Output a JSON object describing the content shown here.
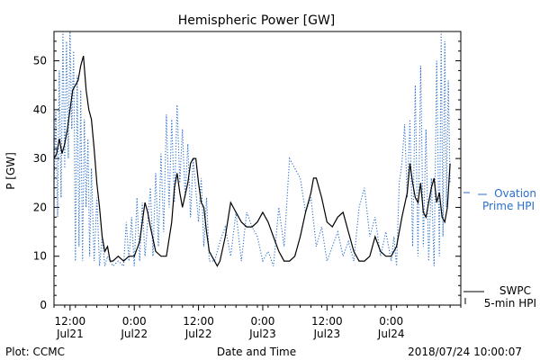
{
  "chart_data": {
    "type": "line",
    "title": "Hemispheric Power [GW]",
    "ylabel": "P [GW]",
    "xlabel": "Date and Time",
    "ylim": [
      0,
      56
    ],
    "xlim": [
      "2018-07-21T09:00",
      "2018-07-24T13:00"
    ],
    "yticks": [
      0,
      10,
      20,
      30,
      40,
      50
    ],
    "xticks": [
      {
        "time": "2018-07-21T12:00",
        "line1": "12:00",
        "line2": "Jul21"
      },
      {
        "time": "2018-07-22T00:00",
        "line1": "0:00",
        "line2": "Jul22"
      },
      {
        "time": "2018-07-22T12:00",
        "line1": "12:00",
        "line2": "Jul22"
      },
      {
        "time": "2018-07-23T00:00",
        "line1": "0:00",
        "line2": "Jul23"
      },
      {
        "time": "2018-07-23T12:00",
        "line1": "12:00",
        "line2": "Jul23"
      },
      {
        "time": "2018-07-24T00:00",
        "line1": "0:00",
        "line2": "Jul24"
      }
    ],
    "series": [
      {
        "name_line1": "SWPC",
        "name_line2": "5-min HPI",
        "color": "#000000",
        "style": "solid",
        "points": [
          [
            "2018-07-21T09:00",
            30
          ],
          [
            "2018-07-21T09:30",
            31
          ],
          [
            "2018-07-21T10:00",
            34
          ],
          [
            "2018-07-21T10:30",
            31
          ],
          [
            "2018-07-21T11:00",
            33
          ],
          [
            "2018-07-21T11:30",
            36
          ],
          [
            "2018-07-21T12:00",
            40
          ],
          [
            "2018-07-21T12:30",
            44
          ],
          [
            "2018-07-21T13:00",
            45
          ],
          [
            "2018-07-21T13:30",
            46
          ],
          [
            "2018-07-21T14:00",
            49
          ],
          [
            "2018-07-21T14:30",
            51
          ],
          [
            "2018-07-21T15:00",
            44
          ],
          [
            "2018-07-21T15:30",
            40
          ],
          [
            "2018-07-21T16:00",
            38
          ],
          [
            "2018-07-21T16:30",
            32
          ],
          [
            "2018-07-21T17:00",
            25
          ],
          [
            "2018-07-21T17:30",
            20
          ],
          [
            "2018-07-21T18:00",
            14
          ],
          [
            "2018-07-21T18:30",
            11
          ],
          [
            "2018-07-21T19:00",
            12
          ],
          [
            "2018-07-21T19:30",
            9
          ],
          [
            "2018-07-21T20:00",
            9
          ],
          [
            "2018-07-21T21:00",
            10
          ],
          [
            "2018-07-21T22:00",
            9
          ],
          [
            "2018-07-21T23:00",
            10
          ],
          [
            "2018-07-22T00:00",
            10
          ],
          [
            "2018-07-22T01:00",
            13
          ],
          [
            "2018-07-22T01:30",
            17
          ],
          [
            "2018-07-22T02:00",
            21
          ],
          [
            "2018-07-22T02:30",
            19
          ],
          [
            "2018-07-22T03:00",
            16
          ],
          [
            "2018-07-22T04:00",
            11
          ],
          [
            "2018-07-22T05:00",
            10
          ],
          [
            "2018-07-22T06:00",
            10
          ],
          [
            "2018-07-22T07:00",
            17
          ],
          [
            "2018-07-22T07:30",
            24
          ],
          [
            "2018-07-22T08:00",
            27
          ],
          [
            "2018-07-22T08:30",
            23
          ],
          [
            "2018-07-22T09:00",
            20
          ],
          [
            "2018-07-22T10:00",
            25
          ],
          [
            "2018-07-22T10:30",
            29
          ],
          [
            "2018-07-22T11:00",
            30
          ],
          [
            "2018-07-22T11:30",
            30
          ],
          [
            "2018-07-22T12:00",
            25
          ],
          [
            "2018-07-22T12:30",
            21
          ],
          [
            "2018-07-22T13:00",
            20
          ],
          [
            "2018-07-22T13:30",
            15
          ],
          [
            "2018-07-22T14:00",
            11
          ],
          [
            "2018-07-22T15:00",
            9
          ],
          [
            "2018-07-22T15:30",
            8
          ],
          [
            "2018-07-22T16:00",
            9
          ],
          [
            "2018-07-22T17:00",
            14
          ],
          [
            "2018-07-22T18:00",
            21
          ],
          [
            "2018-07-22T19:00",
            19
          ],
          [
            "2018-07-22T20:00",
            17
          ],
          [
            "2018-07-22T21:00",
            16
          ],
          [
            "2018-07-22T22:00",
            16
          ],
          [
            "2018-07-22T23:00",
            17
          ],
          [
            "2018-07-23T00:00",
            19
          ],
          [
            "2018-07-23T01:00",
            17
          ],
          [
            "2018-07-23T02:00",
            14
          ],
          [
            "2018-07-23T03:00",
            11
          ],
          [
            "2018-07-23T04:00",
            9
          ],
          [
            "2018-07-23T05:00",
            9
          ],
          [
            "2018-07-23T06:00",
            10
          ],
          [
            "2018-07-23T07:00",
            14
          ],
          [
            "2018-07-23T08:00",
            19
          ],
          [
            "2018-07-23T09:00",
            23
          ],
          [
            "2018-07-23T09:30",
            26
          ],
          [
            "2018-07-23T10:00",
            26
          ],
          [
            "2018-07-23T11:00",
            22
          ],
          [
            "2018-07-23T12:00",
            17
          ],
          [
            "2018-07-23T13:00",
            16
          ],
          [
            "2018-07-23T14:00",
            18
          ],
          [
            "2018-07-23T15:00",
            19
          ],
          [
            "2018-07-23T16:00",
            15
          ],
          [
            "2018-07-23T17:00",
            11
          ],
          [
            "2018-07-23T18:00",
            9
          ],
          [
            "2018-07-23T19:00",
            9
          ],
          [
            "2018-07-23T20:00",
            10
          ],
          [
            "2018-07-23T21:00",
            14
          ],
          [
            "2018-07-23T22:00",
            11
          ],
          [
            "2018-07-23T23:00",
            10
          ],
          [
            "2018-07-24T00:00",
            10
          ],
          [
            "2018-07-24T01:00",
            12
          ],
          [
            "2018-07-24T02:00",
            18
          ],
          [
            "2018-07-24T03:00",
            23
          ],
          [
            "2018-07-24T03:30",
            29
          ],
          [
            "2018-07-24T04:00",
            25
          ],
          [
            "2018-07-24T04:30",
            22
          ],
          [
            "2018-07-24T05:00",
            21
          ],
          [
            "2018-07-24T05:30",
            25
          ],
          [
            "2018-07-24T06:00",
            19
          ],
          [
            "2018-07-24T06:30",
            18
          ],
          [
            "2018-07-24T07:00",
            21
          ],
          [
            "2018-07-24T07:30",
            24
          ],
          [
            "2018-07-24T08:00",
            26
          ],
          [
            "2018-07-24T08:30",
            21
          ],
          [
            "2018-07-24T09:00",
            23
          ],
          [
            "2018-07-24T09:30",
            18
          ],
          [
            "2018-07-24T10:00",
            17
          ],
          [
            "2018-07-24T10:30",
            20
          ],
          [
            "2018-07-24T11:00",
            29
          ]
        ]
      },
      {
        "name_line1": "Ovation",
        "name_line2": "Prime HPI",
        "color": "#2a6fc9",
        "style": "dotted",
        "points": [
          [
            "2018-07-21T09:00",
            24
          ],
          [
            "2018-07-21T09:20",
            40
          ],
          [
            "2018-07-21T09:40",
            18
          ],
          [
            "2018-07-21T10:00",
            48
          ],
          [
            "2018-07-21T10:20",
            22
          ],
          [
            "2018-07-21T10:40",
            56
          ],
          [
            "2018-07-21T11:00",
            28
          ],
          [
            "2018-07-21T11:20",
            54
          ],
          [
            "2018-07-21T11:40",
            30
          ],
          [
            "2018-07-21T12:00",
            56
          ],
          [
            "2018-07-21T12:20",
            36
          ],
          [
            "2018-07-21T12:40",
            52
          ],
          [
            "2018-07-21T13:00",
            9
          ],
          [
            "2018-07-21T13:20",
            47
          ],
          [
            "2018-07-21T13:40",
            12
          ],
          [
            "2018-07-21T14:00",
            44
          ],
          [
            "2018-07-21T14:20",
            9
          ],
          [
            "2018-07-21T14:40",
            38
          ],
          [
            "2018-07-21T15:00",
            20
          ],
          [
            "2018-07-21T15:20",
            34
          ],
          [
            "2018-07-21T15:40",
            10
          ],
          [
            "2018-07-21T16:00",
            28
          ],
          [
            "2018-07-21T16:30",
            9
          ],
          [
            "2018-07-21T17:00",
            22
          ],
          [
            "2018-07-21T17:30",
            8
          ],
          [
            "2018-07-21T18:00",
            14
          ],
          [
            "2018-07-21T18:30",
            8
          ],
          [
            "2018-07-21T19:00",
            10
          ],
          [
            "2018-07-21T20:00",
            8
          ],
          [
            "2018-07-21T21:00",
            9
          ],
          [
            "2018-07-21T22:00",
            8
          ],
          [
            "2018-07-21T22:30",
            17
          ],
          [
            "2018-07-21T23:00",
            9
          ],
          [
            "2018-07-21T23:30",
            18
          ],
          [
            "2018-07-22T00:00",
            8
          ],
          [
            "2018-07-22T00:30",
            22
          ],
          [
            "2018-07-22T01:00",
            9
          ],
          [
            "2018-07-22T01:30",
            21
          ],
          [
            "2018-07-22T02:00",
            10
          ],
          [
            "2018-07-22T03:00",
            24
          ],
          [
            "2018-07-22T03:30",
            10
          ],
          [
            "2018-07-22T04:00",
            27
          ],
          [
            "2018-07-22T04:30",
            12
          ],
          [
            "2018-07-22T05:00",
            31
          ],
          [
            "2018-07-22T05:30",
            15
          ],
          [
            "2018-07-22T06:00",
            39
          ],
          [
            "2018-07-22T06:30",
            20
          ],
          [
            "2018-07-22T07:00",
            38
          ],
          [
            "2018-07-22T07:30",
            21
          ],
          [
            "2018-07-22T08:00",
            41
          ],
          [
            "2018-07-22T08:30",
            25
          ],
          [
            "2018-07-22T09:00",
            36
          ],
          [
            "2018-07-22T09:30",
            22
          ],
          [
            "2018-07-22T10:00",
            33
          ],
          [
            "2018-07-22T10:30",
            18
          ],
          [
            "2018-07-22T11:00",
            30
          ],
          [
            "2018-07-22T12:00",
            17
          ],
          [
            "2018-07-22T12:30",
            26
          ],
          [
            "2018-07-22T13:00",
            12
          ],
          [
            "2018-07-22T13:30",
            22
          ],
          [
            "2018-07-22T14:00",
            9
          ],
          [
            "2018-07-22T15:00",
            9
          ],
          [
            "2018-07-22T16:00",
            13
          ],
          [
            "2018-07-22T17:00",
            16
          ],
          [
            "2018-07-22T18:00",
            10
          ],
          [
            "2018-07-22T19:00",
            19
          ],
          [
            "2018-07-22T20:00",
            9
          ],
          [
            "2018-07-22T21:00",
            19
          ],
          [
            "2018-07-22T22:00",
            16
          ],
          [
            "2018-07-22T23:00",
            14
          ],
          [
            "2018-07-23T00:00",
            9
          ],
          [
            "2018-07-23T01:00",
            11
          ],
          [
            "2018-07-23T02:00",
            8
          ],
          [
            "2018-07-23T03:00",
            20
          ],
          [
            "2018-07-23T04:00",
            12
          ],
          [
            "2018-07-23T05:00",
            30
          ],
          [
            "2018-07-23T06:00",
            28
          ],
          [
            "2018-07-23T07:00",
            26
          ],
          [
            "2018-07-23T08:00",
            19
          ],
          [
            "2018-07-23T09:00",
            22
          ],
          [
            "2018-07-23T10:00",
            12
          ],
          [
            "2018-07-23T11:00",
            16
          ],
          [
            "2018-07-23T12:00",
            9
          ],
          [
            "2018-07-23T13:00",
            12
          ],
          [
            "2018-07-23T14:00",
            15
          ],
          [
            "2018-07-23T15:00",
            10
          ],
          [
            "2018-07-23T16:00",
            13
          ],
          [
            "2018-07-23T17:00",
            9
          ],
          [
            "2018-07-23T18:00",
            20
          ],
          [
            "2018-07-23T19:00",
            24
          ],
          [
            "2018-07-23T20:00",
            14
          ],
          [
            "2018-07-23T21:00",
            18
          ],
          [
            "2018-07-23T22:00",
            10
          ],
          [
            "2018-07-23T23:00",
            15
          ],
          [
            "2018-07-24T00:00",
            9
          ],
          [
            "2018-07-24T00:30",
            14
          ],
          [
            "2018-07-24T01:00",
            8
          ],
          [
            "2018-07-24T01:30",
            25
          ],
          [
            "2018-07-24T02:00",
            29
          ],
          [
            "2018-07-24T02:30",
            37
          ],
          [
            "2018-07-24T03:00",
            22
          ],
          [
            "2018-07-24T03:30",
            38
          ],
          [
            "2018-07-24T04:00",
            12
          ],
          [
            "2018-07-24T04:30",
            45
          ],
          [
            "2018-07-24T05:00",
            10
          ],
          [
            "2018-07-24T05:30",
            49
          ],
          [
            "2018-07-24T06:00",
            12
          ],
          [
            "2018-07-24T06:30",
            36
          ],
          [
            "2018-07-24T07:00",
            9
          ],
          [
            "2018-07-24T07:30",
            26
          ],
          [
            "2018-07-24T08:00",
            8
          ],
          [
            "2018-07-24T08:30",
            50
          ],
          [
            "2018-07-24T09:00",
            10
          ],
          [
            "2018-07-24T09:20",
            56
          ],
          [
            "2018-07-24T09:40",
            14
          ],
          [
            "2018-07-24T10:00",
            54
          ],
          [
            "2018-07-24T10:20",
            20
          ],
          [
            "2018-07-24T10:40",
            46
          ],
          [
            "2018-07-24T11:00",
            25
          ]
        ]
      }
    ],
    "footer": {
      "left": "Plot: CCMC",
      "right": "2018/07/24 10:00:07"
    }
  }
}
